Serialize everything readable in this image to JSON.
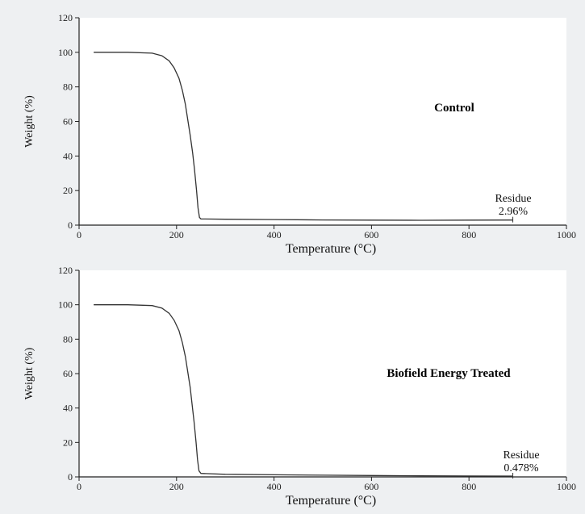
{
  "chart_data": [
    {
      "type": "line",
      "title": "Control",
      "xlabel": "Temperature (°C)",
      "ylabel": "Weight (%)",
      "xlim": [
        0,
        1000
      ],
      "ylim": [
        0,
        120
      ],
      "xticks": [
        0,
        200,
        400,
        600,
        800,
        1000
      ],
      "yticks": [
        0,
        20,
        40,
        60,
        80,
        100,
        120
      ],
      "annotation": [
        "Residue",
        "2.96%"
      ],
      "series": [
        {
          "x": [
            30,
            100,
            150,
            170,
            185,
            195,
            205,
            212,
            218,
            223,
            228,
            233,
            237,
            241,
            244,
            247,
            250,
            300,
            400,
            500,
            600,
            700,
            800,
            890
          ],
          "y": [
            100,
            100,
            99.5,
            98,
            95,
            91,
            85,
            78,
            70,
            61,
            52,
            42,
            32,
            20,
            10,
            4.5,
            3.6,
            3.4,
            3.2,
            3.0,
            2.9,
            2.8,
            2.9,
            2.96
          ]
        }
      ]
    },
    {
      "type": "line",
      "title": "Biofield Energy Treated",
      "xlabel": "Temperature (°C)",
      "ylabel": "Weight (%)",
      "xlim": [
        0,
        1000
      ],
      "ylim": [
        0,
        120
      ],
      "xticks": [
        0,
        200,
        400,
        600,
        800,
        1000
      ],
      "yticks": [
        0,
        20,
        40,
        60,
        80,
        100,
        120
      ],
      "annotation": [
        "Residue",
        "0.478%"
      ],
      "series": [
        {
          "x": [
            30,
            100,
            150,
            170,
            185,
            195,
            205,
            212,
            218,
            223,
            228,
            232,
            236,
            240,
            243,
            246,
            250,
            300,
            400,
            500,
            600,
            700,
            800,
            890
          ],
          "y": [
            100,
            100,
            99.5,
            98,
            95,
            91,
            85,
            78,
            70,
            61,
            52,
            42,
            32,
            20,
            10,
            3.5,
            2.0,
            1.5,
            1.2,
            1.0,
            0.8,
            0.6,
            0.5,
            0.478
          ]
        }
      ]
    }
  ]
}
